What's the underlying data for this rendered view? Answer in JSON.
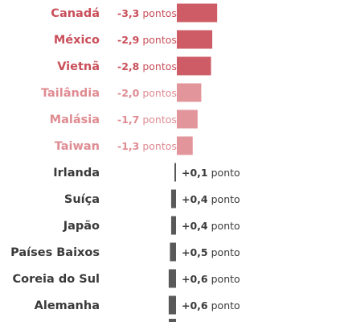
{
  "chart_data": {
    "type": "bar",
    "orientation": "horizontal-diverging",
    "categories": [
      "Canadá",
      "México",
      "Vietnã",
      "Tailândia",
      "Malásia",
      "Taiwan",
      "Irlanda",
      "Suíça",
      "Japão",
      "Países Baixos",
      "Coreia do Sul",
      "Alemanha"
    ],
    "values": [
      -3.3,
      -2.9,
      -2.8,
      -2.0,
      -1.7,
      -1.3,
      0.1,
      0.4,
      0.4,
      0.5,
      0.6,
      0.6
    ],
    "value_labels": [
      {
        "num": "-3,3",
        "unit": "pontos"
      },
      {
        "num": "-2,9",
        "unit": "pontos"
      },
      {
        "num": "-2,8",
        "unit": "pontos"
      },
      {
        "num": "-2,0",
        "unit": "pontos"
      },
      {
        "num": "-1,7",
        "unit": "pontos"
      },
      {
        "num": "-1,3",
        "unit": "pontos"
      },
      {
        "num": "+0,1",
        "unit": "ponto"
      },
      {
        "num": "+0,4",
        "unit": "ponto"
      },
      {
        "num": "+0,4",
        "unit": "ponto"
      },
      {
        "num": "+0,5",
        "unit": "ponto"
      },
      {
        "num": "+0,6",
        "unit": "ponto"
      },
      {
        "num": "+0,6",
        "unit": "ponto"
      }
    ],
    "colors": {
      "neg_strong": "#cd5c66",
      "neg_light": "#e2969c",
      "neg_text_strong": "#c94f5a",
      "neg_text_light": "#df8b92",
      "pos": "#595959",
      "pos_text": "#3a3a3a"
    },
    "title": "",
    "xlabel": "",
    "ylabel": ""
  }
}
